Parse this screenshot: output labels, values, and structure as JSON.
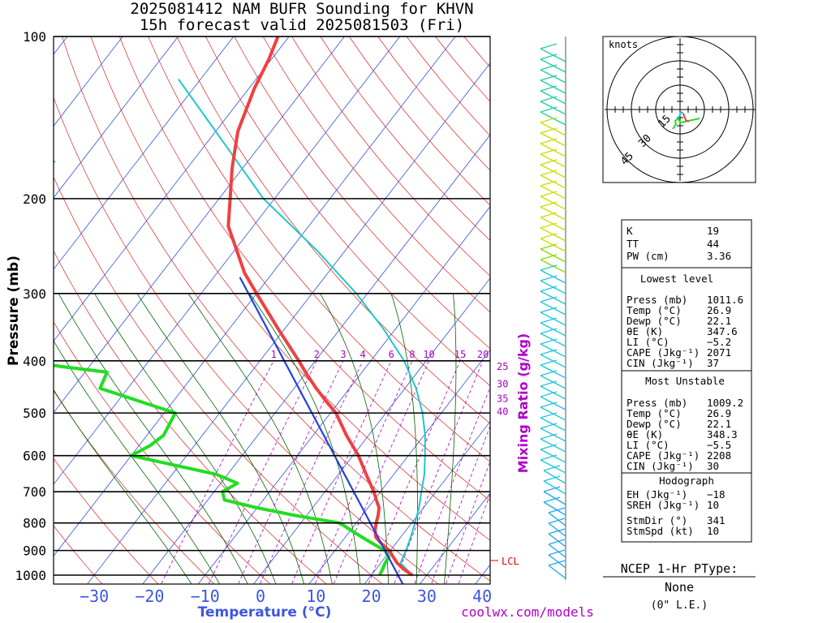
{
  "title": {
    "line1": "2025081412 NAM BUFR Sounding for KHVN",
    "line2": "15h forecast valid 2025081503 (Fri)"
  },
  "credit": "coolwx.com/models",
  "colors": {
    "temp": "#f04040",
    "dewpoint": "#22dd22",
    "virtual_temp": "#20c8c8",
    "parcel": "#2244dd",
    "isotherm": "#3050e0",
    "dry_adiabat": "#e02020",
    "moist_adiabat": "#006400",
    "mixing_ratio": "#b000c8"
  },
  "chart_data": {
    "type": "line",
    "ylabel": "Pressure (mb)",
    "xlabel": "Temperature (°C)",
    "mixing_ratio_label": "Mixing Ratio (g/kg)",
    "pressure_ticks": [
      100,
      200,
      300,
      400,
      500,
      600,
      700,
      800,
      900,
      1000
    ],
    "temp_ticks": [
      -30,
      -20,
      -10,
      0,
      10,
      20,
      30,
      40
    ],
    "xlim": [
      -40,
      42
    ],
    "ylim": [
      1050,
      100
    ],
    "skew": "skew-T log-p",
    "mixing_ratio_values": [
      1,
      2,
      3,
      4,
      6,
      8,
      10,
      15,
      20,
      25,
      30,
      35,
      40
    ],
    "lcl_label": "LCL",
    "lcl_pressure": 965,
    "series": [
      {
        "name": "Temperature",
        "points": [
          [
            1000,
            27.4
          ],
          [
            975,
            25.0
          ],
          [
            950,
            23.0
          ],
          [
            925,
            21.4
          ],
          [
            900,
            19.8
          ],
          [
            875,
            17.5
          ],
          [
            850,
            15.5
          ],
          [
            825,
            14.4
          ],
          [
            800,
            13.6
          ],
          [
            775,
            12.9
          ],
          [
            750,
            12.0
          ],
          [
            725,
            10.4
          ],
          [
            700,
            8.8
          ],
          [
            650,
            5.0
          ],
          [
            600,
            1.0
          ],
          [
            550,
            -4.0
          ],
          [
            500,
            -9.0
          ],
          [
            475,
            -12.5
          ],
          [
            450,
            -16.0
          ],
          [
            425,
            -19.5
          ],
          [
            400,
            -23.0
          ],
          [
            350,
            -31.0
          ],
          [
            300,
            -40.0
          ],
          [
            275,
            -45.0
          ],
          [
            250,
            -49.5
          ],
          [
            225,
            -54.5
          ],
          [
            200,
            -58.0
          ],
          [
            175,
            -62.0
          ],
          [
            150,
            -66.0
          ],
          [
            125,
            -69.0
          ],
          [
            110,
            -70.5
          ],
          [
            100,
            -72.0
          ]
        ]
      },
      {
        "name": "Dewpoint",
        "points": [
          [
            1000,
            21.5
          ],
          [
            975,
            21.2
          ],
          [
            950,
            20.8
          ],
          [
            925,
            20.6
          ],
          [
            900,
            19.0
          ],
          [
            875,
            16.0
          ],
          [
            850,
            13.0
          ],
          [
            825,
            10.0
          ],
          [
            800,
            7.0
          ],
          [
            775,
            -2.0
          ],
          [
            750,
            -10.0
          ],
          [
            725,
            -17.0
          ],
          [
            700,
            -18.5
          ],
          [
            675,
            -17.0
          ],
          [
            650,
            -22.0
          ],
          [
            600,
            -40.0
          ],
          [
            575,
            -38.0
          ],
          [
            550,
            -37.0
          ],
          [
            500,
            -38.0
          ],
          [
            450,
            -55.0
          ],
          [
            420,
            -56.0
          ],
          [
            410,
            -65.0
          ],
          [
            390,
            -80.0
          ],
          [
            380,
            -78.0
          ],
          [
            350,
            -78.0
          ],
          [
            325,
            -80.0
          ],
          [
            300,
            -82.0
          ],
          [
            275,
            -84.0
          ],
          [
            250,
            -84.0
          ],
          [
            225,
            -90.0
          ],
          [
            200,
            -96.0
          ],
          [
            180,
            -96.0
          ],
          [
            170,
            -95.0
          ]
        ]
      },
      {
        "name": "Virtual temperature / parcel",
        "points": [
          [
            1000,
            27.4
          ],
          [
            950,
            23.6
          ],
          [
            900,
            22.8
          ],
          [
            850,
            21.8
          ],
          [
            800,
            20.6
          ],
          [
            750,
            19.2
          ],
          [
            700,
            17.4
          ],
          [
            650,
            15.5
          ],
          [
            600,
            13.0
          ],
          [
            550,
            10.2
          ],
          [
            500,
            6.6
          ],
          [
            450,
            2.0
          ],
          [
            400,
            -4.0
          ],
          [
            350,
            -12.0
          ],
          [
            300,
            -22.0
          ],
          [
            250,
            -35.0
          ],
          [
            200,
            -52.0
          ],
          [
            150,
            -70.0
          ],
          [
            120,
            -84.0
          ]
        ]
      }
    ]
  },
  "hodograph": {
    "units_label": "knots",
    "ring_labels": [
      "15",
      "30",
      "45"
    ]
  },
  "indices": {
    "top": [
      {
        "label": "K",
        "value": "19"
      },
      {
        "label": "TT",
        "value": "44"
      },
      {
        "label": "PW (cm)",
        "value": "3.36"
      }
    ],
    "sections": [
      {
        "heading": "Lowest level",
        "rows": [
          {
            "label": "Press (mb)",
            "value": "1011.6"
          },
          {
            "label": "Temp (°C)",
            "value": "26.9"
          },
          {
            "label": "Dewp (°C)",
            "value": "22.1"
          },
          {
            "label": "θE (K)",
            "value": "347.6"
          },
          {
            "label": "LI (°C)",
            "value": "−5.2"
          },
          {
            "label": "CAPE (Jkg⁻¹)",
            "value": "2071"
          },
          {
            "label": "CIN (Jkg⁻¹)",
            "value": "37"
          }
        ]
      },
      {
        "heading": "Most Unstable",
        "rows": [
          {
            "label": "Press (mb)",
            "value": "1009.2"
          },
          {
            "label": "Temp (°C)",
            "value": "26.9"
          },
          {
            "label": "Dewp (°C)",
            "value": "22.1"
          },
          {
            "label": "θE (K)",
            "value": "348.3"
          },
          {
            "label": "LI (°C)",
            "value": "−5.5"
          },
          {
            "label": "CAPE (Jkg⁻¹)",
            "value": "2208"
          },
          {
            "label": "CIN (Jkg⁻¹)",
            "value": "30"
          }
        ]
      },
      {
        "heading": "Hodograph",
        "rows": [
          {
            "label": "EH (Jkg⁻¹)",
            "value": "−18"
          },
          {
            "label": "SREH (Jkg⁻¹)",
            "value": "10"
          },
          {
            "label": "StmDir (°)",
            "value": "341"
          },
          {
            "label": "StmSpd (kt)",
            "value": "10"
          }
        ]
      }
    ]
  },
  "ptype": {
    "title": "NCEP 1-Hr PType:",
    "value": "None",
    "amount": "(0\" L.E.)"
  }
}
